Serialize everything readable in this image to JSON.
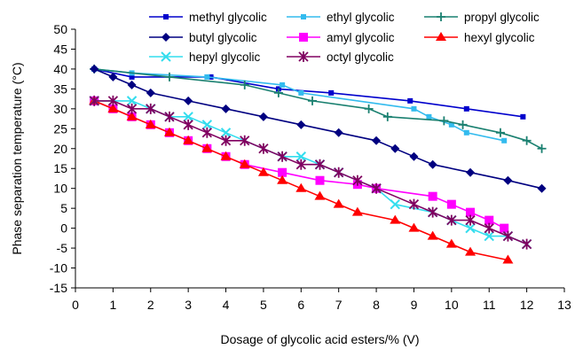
{
  "chart_data": {
    "type": "line",
    "title": "",
    "xlabel": "Dosage of glycolic acid esters/% (V)",
    "ylabel": "Phase separation temperature (°C)",
    "xlim": [
      0,
      13
    ],
    "ylim": [
      -15,
      50
    ],
    "x_ticks": [
      "0",
      "1",
      "2",
      "3",
      "4",
      "5",
      "6",
      "7",
      "8",
      "9",
      "10",
      "11",
      "12",
      "13"
    ],
    "y_ticks": [
      "-15",
      "-10",
      "-5",
      "0",
      "5",
      "10",
      "15",
      "20",
      "25",
      "30",
      "35",
      "40",
      "45",
      "50"
    ],
    "grid": false,
    "legend_position": "top",
    "series": [
      {
        "name": "methyl glycolic",
        "color": "#0000cc",
        "marker": "square-small",
        "x": [
          0.5,
          1.5,
          3.6,
          5.4,
          6.8,
          8.9,
          10.4,
          11.9
        ],
        "y": [
          40,
          38,
          38,
          35,
          34,
          32,
          30,
          28
        ]
      },
      {
        "name": "ethyl glycolic",
        "color": "#33bbee",
        "marker": "square-small",
        "x": [
          0.5,
          1.5,
          3.5,
          5.5,
          6.0,
          9.0,
          9.4,
          10.0,
          10.4,
          11.4
        ],
        "y": [
          40,
          39,
          38,
          36,
          34,
          30,
          28,
          26,
          24,
          22
        ]
      },
      {
        "name": "propyl glycolic",
        "color": "#1a8070",
        "marker": "plus",
        "x": [
          0.5,
          2.5,
          4.5,
          5.4,
          6.3,
          7.8,
          8.3,
          9.8,
          10.3,
          11.3,
          12.0,
          12.4
        ],
        "y": [
          40,
          38,
          36,
          34,
          32,
          30,
          28,
          27,
          26,
          24,
          22,
          20
        ]
      },
      {
        "name": "butyl glycolic",
        "color": "#000080",
        "marker": "diamond",
        "x": [
          0.5,
          1.0,
          1.5,
          2.0,
          3.0,
          4.0,
          5.0,
          6.0,
          7.0,
          8.0,
          8.5,
          9.0,
          9.5,
          10.5,
          11.5,
          12.4
        ],
        "y": [
          40,
          38,
          36,
          34,
          32,
          30,
          28,
          26,
          24,
          22,
          20,
          18,
          16,
          14,
          12,
          10
        ]
      },
      {
        "name": "amyl glycolic",
        "color": "#ff00ff",
        "marker": "square",
        "x": [
          0.5,
          1.0,
          1.5,
          2.0,
          2.5,
          3.0,
          3.5,
          4.0,
          4.5,
          5.5,
          6.5,
          7.5,
          8.0,
          9.5,
          10.0,
          10.5,
          11.0,
          11.4
        ],
        "y": [
          32,
          30,
          28,
          26,
          24,
          22,
          20,
          18,
          16,
          14,
          12,
          11,
          10,
          8,
          6,
          4,
          2,
          0
        ]
      },
      {
        "name": "hexyl glycolic",
        "color": "#ff0000",
        "marker": "triangle",
        "x": [
          0.5,
          1.0,
          1.5,
          2.0,
          2.5,
          3.0,
          3.5,
          4.0,
          4.5,
          5.0,
          5.5,
          6.0,
          6.5,
          7.0,
          7.5,
          8.5,
          9.0,
          9.5,
          10.0,
          10.5,
          11.5
        ],
        "y": [
          32,
          30,
          28,
          26,
          24,
          22,
          20,
          18,
          16,
          14,
          12,
          10,
          8,
          6,
          4,
          2,
          0,
          -2,
          -4,
          -6,
          -8
        ]
      },
      {
        "name": "hepyl glycolic",
        "color": "#33ddee",
        "marker": "x",
        "x": [
          0.5,
          1.5,
          2.0,
          2.5,
          3.0,
          3.5,
          4.0,
          5.5,
          6.0,
          6.5,
          7.0,
          8.0,
          8.5,
          9.5,
          10.0,
          10.5,
          11.0,
          11.5,
          12.0
        ],
        "y": [
          32,
          32,
          30,
          28,
          28,
          26,
          24,
          18,
          18,
          16,
          14,
          10,
          6,
          4,
          2,
          0,
          -2,
          -2,
          -4
        ]
      },
      {
        "name": "octyl glycolic",
        "color": "#800060",
        "marker": "asterisk",
        "x": [
          0.5,
          1.0,
          1.5,
          2.0,
          2.5,
          3.0,
          3.5,
          4.0,
          4.5,
          5.0,
          5.5,
          6.0,
          6.5,
          7.0,
          7.5,
          8.0,
          9.0,
          9.5,
          10.0,
          10.5,
          11.0,
          11.5,
          12.0
        ],
        "y": [
          32,
          32,
          30,
          30,
          28,
          26,
          24,
          22,
          22,
          20,
          18,
          16,
          16,
          14,
          12,
          10,
          6,
          4,
          2,
          2,
          0,
          -2,
          -4
        ]
      }
    ]
  }
}
